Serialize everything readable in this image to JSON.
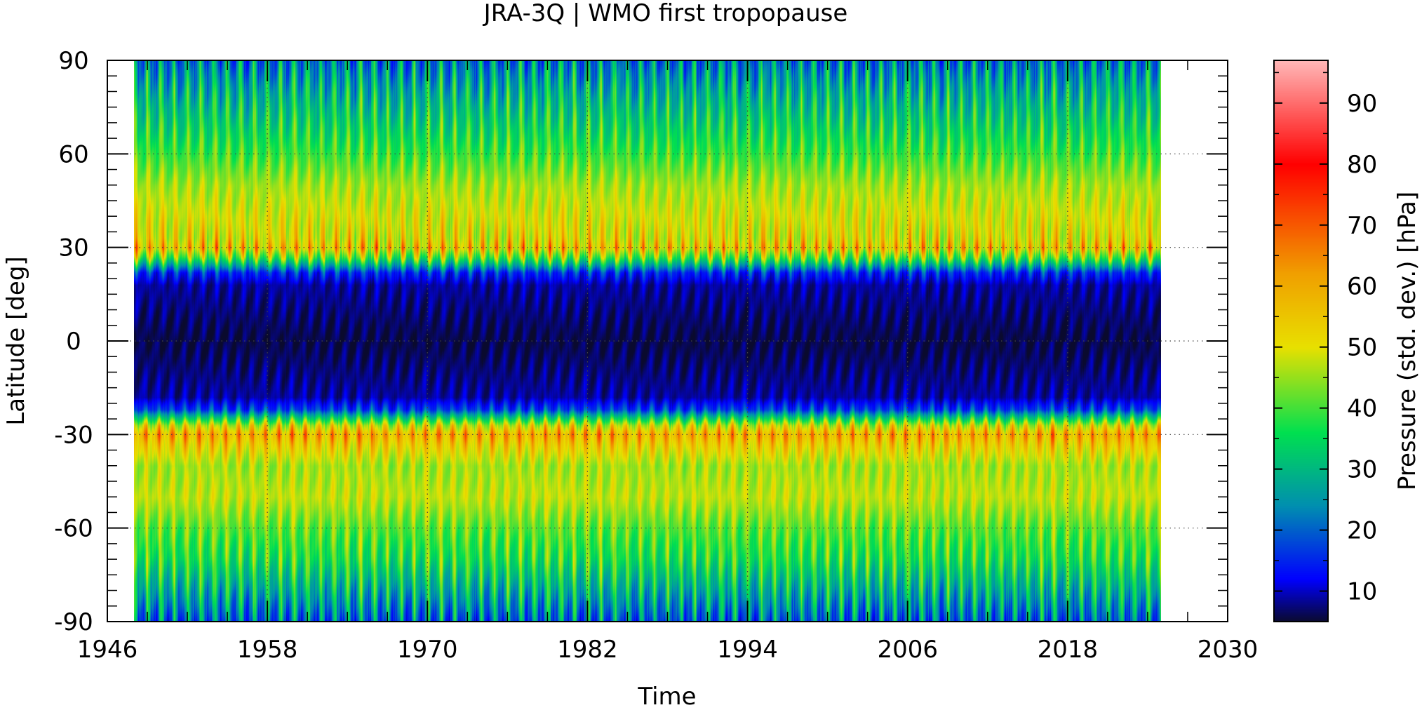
{
  "chart_data": {
    "type": "heatmap",
    "title": "JRA-3Q | WMO first tropopause",
    "xlabel": "Time",
    "ylabel": "Latitude [deg]",
    "colorbar_label": "Pressure (std. dev.) [hPa]",
    "xlim": [
      1946,
      2030
    ],
    "ylim": [
      -90,
      90
    ],
    "x_ticks": [
      1946,
      1958,
      1970,
      1982,
      1994,
      2006,
      2018,
      2030
    ],
    "y_ticks": [
      -90,
      -60,
      -30,
      0,
      30,
      60,
      90
    ],
    "colorbar_range": [
      5,
      97
    ],
    "colorbar_ticks": [
      10,
      20,
      30,
      40,
      50,
      60,
      70,
      80,
      90
    ],
    "grid": true,
    "data_time_range": [
      1948,
      2025
    ],
    "seasonal_cycle_period_years": 1,
    "colormap": [
      "#0a0a2e",
      "#0000ff",
      "#008fb0",
      "#00e050",
      "#e8e000",
      "#f0a000",
      "#ff0000",
      "#ffb8b8"
    ],
    "latitude_profile": [
      {
        "lat": -90,
        "mean": 22,
        "amp": 20
      },
      {
        "lat": -80,
        "mean": 30,
        "amp": 18
      },
      {
        "lat": -70,
        "mean": 38,
        "amp": 14
      },
      {
        "lat": -60,
        "mean": 42,
        "amp": 9
      },
      {
        "lat": -50,
        "mean": 48,
        "amp": 6
      },
      {
        "lat": -40,
        "mean": 46,
        "amp": 7
      },
      {
        "lat": -33,
        "mean": 55,
        "amp": 14
      },
      {
        "lat": -30,
        "mean": 60,
        "amp": 18
      },
      {
        "lat": -27,
        "mean": 50,
        "amp": 18
      },
      {
        "lat": -22,
        "mean": 18,
        "amp": 10
      },
      {
        "lat": -18,
        "mean": 9,
        "amp": 3
      },
      {
        "lat": 0,
        "mean": 6,
        "amp": 2
      },
      {
        "lat": 18,
        "mean": 9,
        "amp": 3
      },
      {
        "lat": 22,
        "mean": 16,
        "amp": 10
      },
      {
        "lat": 27,
        "mean": 44,
        "amp": 22
      },
      {
        "lat": 30,
        "mean": 56,
        "amp": 24
      },
      {
        "lat": 33,
        "mean": 52,
        "amp": 18
      },
      {
        "lat": 40,
        "mean": 50,
        "amp": 10
      },
      {
        "lat": 50,
        "mean": 46,
        "amp": 6
      },
      {
        "lat": 60,
        "mean": 40,
        "amp": 9
      },
      {
        "lat": 70,
        "mean": 35,
        "amp": 14
      },
      {
        "lat": 80,
        "mean": 30,
        "amp": 18
      },
      {
        "lat": 90,
        "mean": 24,
        "amp": 20
      }
    ]
  }
}
